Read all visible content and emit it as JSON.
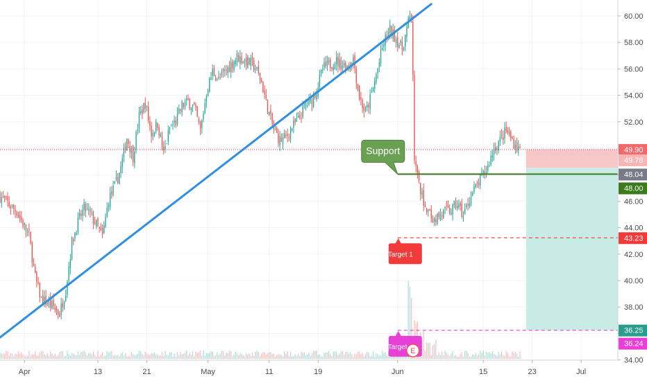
{
  "chart_data": {
    "type": "candlestick",
    "title": "",
    "xlabel": "",
    "ylabel": "",
    "ylim": [
      34,
      61
    ],
    "grid": true,
    "x_ticks": [
      {
        "label": "Apr",
        "day": 1
      },
      {
        "label": "13",
        "day": 13
      },
      {
        "label": "21",
        "day": 21
      },
      {
        "label": "May",
        "day": 31
      },
      {
        "label": "11",
        "day": 41
      },
      {
        "label": "19",
        "day": 49
      },
      {
        "label": "Jun",
        "day": 62
      },
      {
        "label": "15",
        "day": 76
      },
      {
        "label": "23",
        "day": 84
      },
      {
        "label": "Jul",
        "day": 92
      }
    ],
    "y_ticks": [
      34,
      36,
      38,
      40,
      42,
      44,
      46,
      48,
      50,
      52,
      54,
      56,
      58,
      60
    ],
    "x_range_days": [
      -3,
      98
    ],
    "last_bar_day": 82,
    "price_path": [
      [
        -3,
        46.5
      ],
      [
        0,
        45.2
      ],
      [
        2,
        43.4
      ],
      [
        3,
        40.2
      ],
      [
        4,
        38.6
      ],
      [
        6,
        38.0
      ],
      [
        7,
        37.5
      ],
      [
        8,
        39.3
      ],
      [
        9,
        42.9
      ],
      [
        10,
        44.4
      ],
      [
        11,
        45.5
      ],
      [
        12,
        45.0
      ],
      [
        13,
        44.2
      ],
      [
        14,
        43.3
      ],
      [
        15,
        46.1
      ],
      [
        16,
        47.1
      ],
      [
        17,
        48.5
      ],
      [
        18,
        50.8
      ],
      [
        19,
        49.4
      ],
      [
        20,
        52.4
      ],
      [
        21,
        53.4
      ],
      [
        22,
        51.1
      ],
      [
        23,
        51.9
      ],
      [
        24,
        49.6
      ],
      [
        25,
        51.5
      ],
      [
        26,
        52.0
      ],
      [
        27,
        53.2
      ],
      [
        28,
        53.5
      ],
      [
        29,
        53.1
      ],
      [
        30,
        51.3
      ],
      [
        31,
        54.2
      ],
      [
        32,
        55.8
      ],
      [
        33,
        55.2
      ],
      [
        35,
        56.3
      ],
      [
        36,
        56.9
      ],
      [
        38,
        56.5
      ],
      [
        39,
        56.1
      ],
      [
        40,
        55.0
      ],
      [
        41,
        53.0
      ],
      [
        42,
        51.4
      ],
      [
        43,
        50.6
      ],
      [
        44,
        50.8
      ],
      [
        45,
        51.6
      ],
      [
        46,
        52.1
      ],
      [
        47,
        53.1
      ],
      [
        48,
        53.5
      ],
      [
        49,
        54.4
      ],
      [
        50,
        56.0
      ],
      [
        52,
        56.6
      ],
      [
        53,
        56.4
      ],
      [
        54,
        56.2
      ],
      [
        55,
        56.8
      ],
      [
        56,
        53.9
      ],
      [
        57,
        52.6
      ],
      [
        58,
        54.1
      ],
      [
        59,
        56.0
      ],
      [
        60,
        58.0
      ],
      [
        61,
        58.9
      ],
      [
        62,
        58.3
      ],
      [
        63,
        57.5
      ],
      [
        64,
        59.5
      ],
      [
        64.6,
        59.9
      ],
      [
        65,
        49.0
      ],
      [
        66,
        46.6
      ],
      [
        67,
        45.4
      ],
      [
        68,
        44.6
      ],
      [
        69,
        44.9
      ],
      [
        70,
        45.2
      ],
      [
        71,
        45.3
      ],
      [
        72,
        45.8
      ],
      [
        73,
        44.9
      ],
      [
        74,
        46.2
      ],
      [
        75,
        47.0
      ],
      [
        76,
        47.8
      ],
      [
        77,
        48.6
      ],
      [
        78,
        50.0
      ],
      [
        79,
        50.6
      ],
      [
        80,
        51.3
      ],
      [
        81,
        50.6
      ],
      [
        82,
        49.9
      ]
    ],
    "volume_spikes": [
      [
        64,
        0.55
      ],
      [
        65,
        0.24
      ],
      [
        66,
        0.17
      ],
      [
        67,
        0.14
      ],
      [
        68,
        0.13
      ]
    ],
    "trendline": {
      "start": [
        -3,
        35.7
      ],
      "end": [
        67.5,
        60.9
      ],
      "color": "#2f8fe0"
    },
    "support": {
      "label": "Support",
      "level": 48.04,
      "from_day": 62,
      "color": "#3d7a1c"
    },
    "current_price_line": {
      "level": 49.9,
      "color": "#e53935"
    },
    "position": {
      "entry": 49.78,
      "stop": 49.9,
      "target": 36.25,
      "from_day": 83,
      "stop_color": "#f7c7c7",
      "target_color": "#c9ebe5"
    },
    "targets": [
      {
        "label": "Target 1",
        "level": 43.23,
        "from_day": 62,
        "color": "#f23a3a"
      },
      {
        "label": "Target 2",
        "level": 36.24,
        "from_day": 62,
        "color": "#e83fd8"
      }
    ],
    "earnings_marker": {
      "label": "E",
      "day": 64.5
    },
    "price_labels": [
      {
        "text": "49.90",
        "value": 49.9,
        "bg": "#f06a6a"
      },
      {
        "text": "49.78",
        "value": 49.78,
        "bg": "#f7b6b6"
      },
      {
        "text": "48.04",
        "value": 48.04,
        "bg": "#787b86"
      },
      {
        "text": "48.00",
        "value": 48.0,
        "bg": "#3d7a1c"
      },
      {
        "text": "43.23",
        "value": 43.23,
        "bg": "#f23a3a"
      },
      {
        "text": "36.25",
        "value": 36.25,
        "bg": "#2a9d8f"
      },
      {
        "text": "36.24",
        "value": 36.24,
        "bg": "#e83fd8"
      }
    ]
  }
}
